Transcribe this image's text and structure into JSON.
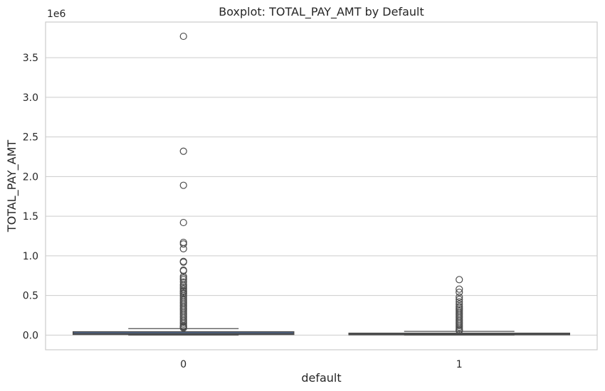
{
  "chart_data": {
    "type": "boxplot",
    "title": "Boxplot: TOTAL_PAY_AMT by Default",
    "xlabel": "default",
    "ylabel": "TOTAL_PAY_AMT",
    "y_offset_label": "1e6",
    "ylim": [
      -0.185,
      3.95
    ],
    "yticks": [
      0.0,
      0.5,
      1.0,
      1.5,
      2.0,
      2.5,
      3.0,
      3.5
    ],
    "ytick_labels": [
      "0.0",
      "0.5",
      "1.0",
      "1.5",
      "2.0",
      "2.5",
      "3.0",
      "3.5"
    ],
    "grid": true,
    "categories": [
      "0",
      "1"
    ],
    "boxes": [
      {
        "category": "0",
        "whisker_low": 0.0,
        "q1": 0.008,
        "median": 0.021,
        "q3": 0.042,
        "whisker_high": 0.082,
        "outliers": [
          3.77,
          2.32,
          1.89,
          1.42,
          1.17,
          1.15,
          1.09,
          0.93,
          0.92,
          0.82,
          0.81,
          0.74,
          0.72,
          0.7,
          0.67,
          0.64,
          0.62,
          0.6,
          0.58,
          0.56,
          0.55,
          0.53,
          0.52,
          0.5,
          0.48,
          0.46,
          0.44,
          0.42,
          0.4,
          0.38,
          0.36,
          0.34,
          0.32,
          0.3,
          0.28,
          0.26,
          0.24,
          0.22,
          0.2,
          0.18,
          0.16,
          0.14,
          0.12,
          0.11,
          0.1,
          0.09
        ]
      },
      {
        "category": "1",
        "whisker_low": 0.0,
        "q1": 0.004,
        "median": 0.012,
        "q3": 0.024,
        "whisker_high": 0.047,
        "outliers": [
          0.7,
          0.58,
          0.54,
          0.48,
          0.45,
          0.42,
          0.39,
          0.36,
          0.34,
          0.32,
          0.3,
          0.28,
          0.26,
          0.24,
          0.22,
          0.2,
          0.18,
          0.16,
          0.14,
          0.12,
          0.1,
          0.08,
          0.065,
          0.055
        ]
      }
    ],
    "colors": {
      "box_fill": "#4c72b0",
      "line": "#4d4d4d",
      "grid": "#cccccc",
      "frame": "#cccccc"
    }
  }
}
